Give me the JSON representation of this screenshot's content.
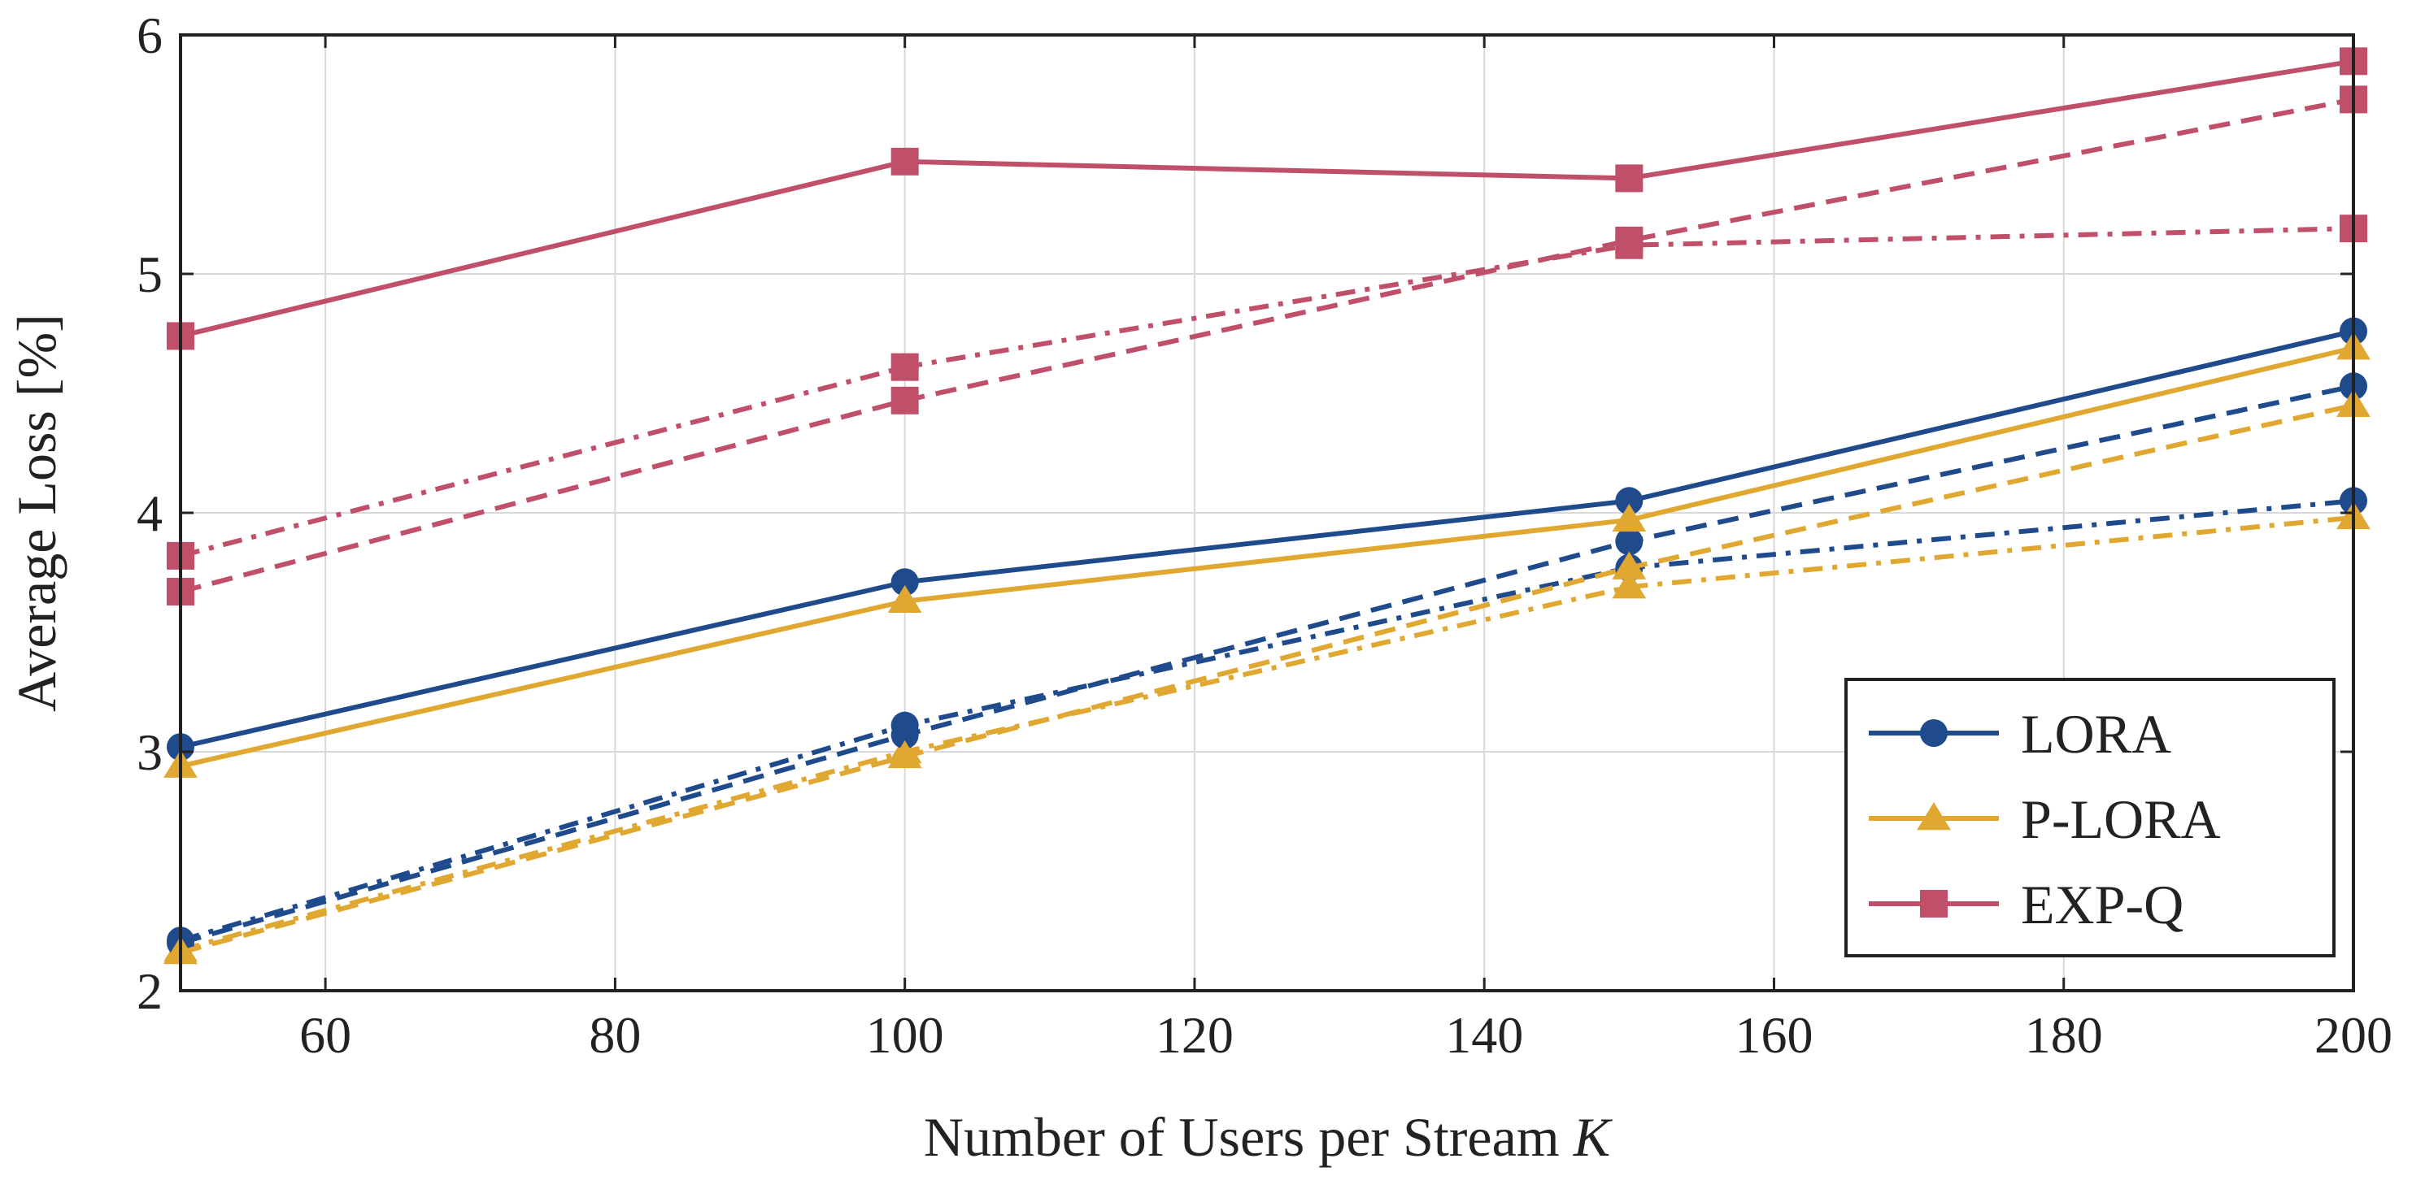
{
  "chart_data": {
    "type": "line",
    "title": "",
    "xlabel": "Number of Users per Stream",
    "xlabel_var": "K",
    "ylabel": "Average Loss [%]",
    "xlim": [
      50,
      200
    ],
    "ylim": [
      2,
      6
    ],
    "xticks": [
      60,
      80,
      100,
      120,
      140,
      160,
      180,
      200
    ],
    "yticks": [
      2,
      3,
      4,
      5,
      6
    ],
    "grid": true,
    "legend_position": "bottom-right",
    "x": [
      50,
      100,
      150,
      200
    ],
    "series": [
      {
        "name": "LORA",
        "legend": true,
        "marker": "circle",
        "dash": "solid",
        "color": "#1f4b8c",
        "values": [
          3.02,
          3.71,
          4.05,
          4.76
        ]
      },
      {
        "name": "P-LORA",
        "legend": true,
        "marker": "triangle",
        "dash": "solid",
        "color": "#e0a830",
        "values": [
          2.94,
          3.63,
          3.97,
          4.69
        ]
      },
      {
        "name": "EXP-Q",
        "legend": true,
        "marker": "square",
        "dash": "solid",
        "color": "#c0506a",
        "values": [
          4.74,
          5.47,
          5.4,
          5.89
        ]
      },
      {
        "name": "LORA",
        "legend": false,
        "marker": "circle",
        "dash": "dashed",
        "color": "#1f4b8c",
        "values": [
          2.2,
          3.07,
          3.88,
          4.53
        ]
      },
      {
        "name": "P-LORA",
        "legend": false,
        "marker": "triangle",
        "dash": "dashed",
        "color": "#e0a830",
        "values": [
          2.16,
          2.98,
          3.77,
          4.45
        ]
      },
      {
        "name": "EXP-Q",
        "legend": false,
        "marker": "square",
        "dash": "dashed",
        "color": "#c0506a",
        "values": [
          3.67,
          4.47,
          5.14,
          5.73
        ]
      },
      {
        "name": "LORA",
        "legend": false,
        "marker": "circle",
        "dash": "dashdot",
        "color": "#1f4b8c",
        "values": [
          2.21,
          3.11,
          3.77,
          4.05
        ]
      },
      {
        "name": "P-LORA",
        "legend": false,
        "marker": "triangle",
        "dash": "dashdot",
        "color": "#e0a830",
        "values": [
          2.17,
          3.0,
          3.69,
          3.98
        ]
      },
      {
        "name": "EXP-Q",
        "legend": false,
        "marker": "square",
        "dash": "dashdot",
        "color": "#c0506a",
        "values": [
          3.82,
          4.61,
          5.12,
          5.19
        ]
      }
    ]
  }
}
